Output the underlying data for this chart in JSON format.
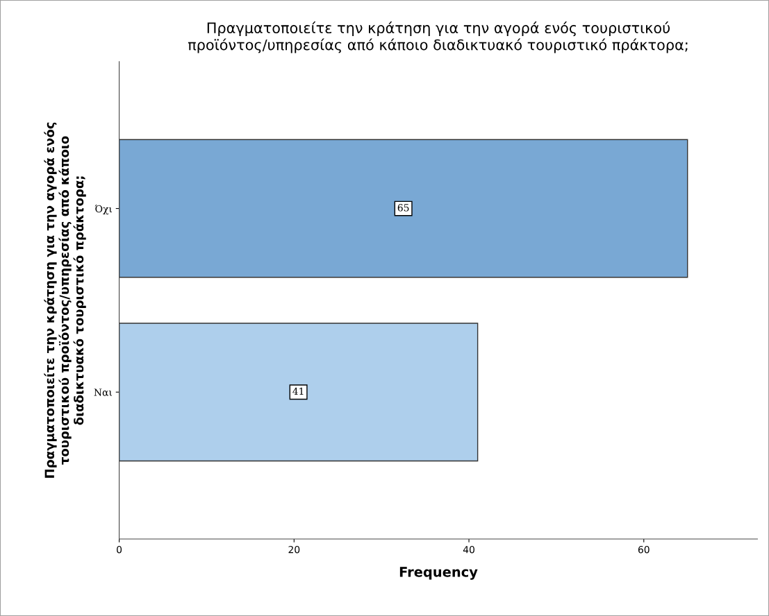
{
  "chart_data": {
    "type": "bar",
    "orientation": "horizontal",
    "title": "Πραγματοποιείτε την κράτηση για την αγορά ενός τουριστικού\nπροϊόντος/υπηρεσίας από κάποιο διαδικτυακό τουριστικό πράκτορα;",
    "xlabel": "Frequency",
    "ylabel": "Πραγματοποιείτε την κράτηση για την αγορά ενός\nτουριστικού προϊόντος/υπηρεσίας από κάποιο\nδιαδικτυακό τουριστικό πράκτορα;",
    "categories": [
      "Όχι",
      "Ναι"
    ],
    "values": [
      65,
      41
    ],
    "colors": [
      "#79a8d4",
      "#aecfec"
    ],
    "xlim": [
      0,
      73
    ],
    "xticks": [
      0,
      20,
      40,
      60
    ],
    "data_labels": true,
    "grid": false
  }
}
